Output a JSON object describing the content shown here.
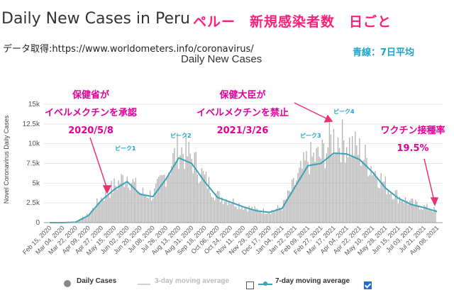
{
  "header": {
    "title": "Daily New Cases in Peru",
    "title_jp": "ペルー　新規感染者数　日ごと",
    "source": "データ取得:https://www.worldometers.info/coronavirus/",
    "blue_line_note": "青線：7日平均"
  },
  "annotations": {
    "ann1_line1": "保健省が",
    "ann1_line2": "イベルメクチンを承認",
    "ann1_line3": "2020/5/8",
    "ann2_line1": "保健大臣が",
    "ann2_line2": "イベルメクチンを禁止",
    "ann2_line3": "2021/3/26",
    "vax_label": "ワクチン接種率",
    "vax_value": "19.5%",
    "peak1": "ピーク1",
    "peak2": "ピーク2",
    "peak3": "ピーク3",
    "peak4": "ピーク4"
  },
  "legend": {
    "daily": "Daily Cases",
    "three_day": "3-day moving average",
    "seven_day": "7-day moving average",
    "three_day_checked": false,
    "seven_day_checked": true
  },
  "colors": {
    "bars": "#b0b0b0",
    "line7": "#3aa3b8",
    "annotation": "#e0009a",
    "peak_label": "#1ba6c9",
    "arrow": "#e8336d"
  },
  "chart_data": {
    "type": "bar",
    "title": "Daily New Cases",
    "ylabel": "Novel Coronavirus Daily Cases",
    "ylim": [
      0,
      15000
    ],
    "yticks": [
      "0",
      "2.5k",
      "5k",
      "7.5k",
      "10k",
      "12.5k",
      "15k"
    ],
    "ytick_values": [
      0,
      2500,
      5000,
      7500,
      10000,
      12500,
      15000
    ],
    "xticks": [
      "Feb 15, 2020",
      "Mar 04, 2020",
      "Mar 22, 2020",
      "Apr 09, 2020",
      "Apr 27, 2020",
      "May 15, 2020",
      "Jun 02, 2020",
      "Jun 20, 2020",
      "Jul 08, 2020",
      "Jul 26, 2020",
      "Aug 13, 2020",
      "Aug 31, 2020",
      "Sep 18, 2020",
      "Oct 06, 2020",
      "Oct 24, 2020",
      "Nov 11, 2020",
      "Nov 29, 2020",
      "Dec 17, 2020",
      "Jan 04, 2021",
      "Jan 22, 2021",
      "Feb 09, 2021",
      "Feb 27, 2021",
      "Mar 17, 2021",
      "Apr 04, 2021",
      "Apr 22, 2021",
      "May 10, 2021",
      "May 28, 2021",
      "Jun 15, 2021",
      "Jul 03, 2021",
      "Jul 21, 2021",
      "Aug 08, 2021"
    ],
    "series": [
      {
        "name": "7-day moving average",
        "x": [
          "Feb 15, 2020",
          "Mar 04, 2020",
          "Mar 22, 2020",
          "Apr 09, 2020",
          "Apr 27, 2020",
          "May 15, 2020",
          "Jun 02, 2020",
          "Jun 20, 2020",
          "Jul 08, 2020",
          "Jul 26, 2020",
          "Aug 13, 2020",
          "Aug 31, 2020",
          "Sep 18, 2020",
          "Oct 06, 2020",
          "Oct 24, 2020",
          "Nov 11, 2020",
          "Nov 29, 2020",
          "Dec 17, 2020",
          "Jan 04, 2021",
          "Jan 22, 2021",
          "Feb 09, 2021",
          "Feb 27, 2021",
          "Mar 17, 2021",
          "Apr 04, 2021",
          "Apr 22, 2021",
          "May 10, 2021",
          "May 28, 2021",
          "Jun 15, 2021",
          "Jul 03, 2021",
          "Jul 21, 2021",
          "Aug 08, 2021"
        ],
        "values": [
          0,
          0,
          50,
          900,
          2800,
          4200,
          5200,
          3600,
          3300,
          5500,
          8200,
          7500,
          5200,
          3200,
          2600,
          2000,
          1500,
          1300,
          1800,
          4500,
          7200,
          7500,
          8800,
          8700,
          8000,
          6400,
          4400,
          3100,
          2300,
          1900,
          1400
        ]
      },
      {
        "name": "Daily Cases",
        "x": [
          "Feb 15, 2020",
          "Mar 04, 2020",
          "Mar 22, 2020",
          "Apr 09, 2020",
          "Apr 27, 2020",
          "May 15, 2020",
          "Jun 02, 2020",
          "Jun 20, 2020",
          "Jul 08, 2020",
          "Jul 26, 2020",
          "Aug 13, 2020",
          "Aug 31, 2020",
          "Sep 18, 2020",
          "Oct 06, 2020",
          "Oct 24, 2020",
          "Nov 11, 2020",
          "Nov 29, 2020",
          "Dec 17, 2020",
          "Jan 04, 2021",
          "Jan 22, 2021",
          "Feb 09, 2021",
          "Feb 27, 2021",
          "Mar 17, 2021",
          "Apr 04, 2021",
          "Apr 22, 2021",
          "May 10, 2021",
          "May 28, 2021",
          "Jun 15, 2021",
          "Jul 03, 2021",
          "Jul 21, 2021",
          "Aug 08, 2021"
        ],
        "values": [
          0,
          0,
          60,
          1000,
          3100,
          4600,
          6000,
          3800,
          3500,
          6200,
          9400,
          8200,
          5600,
          3400,
          2800,
          2100,
          1600,
          1400,
          2000,
          5000,
          8000,
          8400,
          10800,
          10200,
          9000,
          7000,
          4800,
          3300,
          2500,
          2000,
          1500
        ]
      }
    ]
  }
}
